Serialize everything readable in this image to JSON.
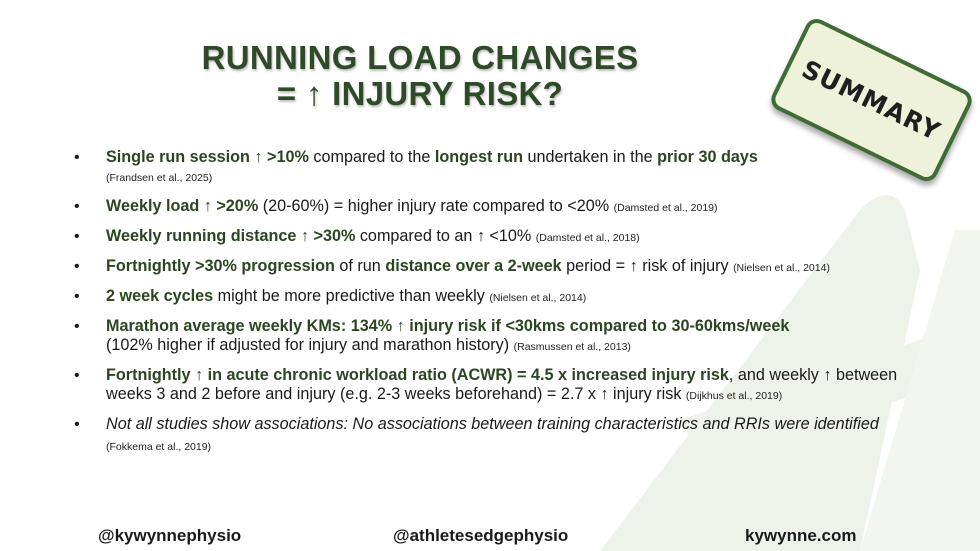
{
  "title": {
    "line1": "RUNNING LOAD CHANGES",
    "line2": "= ↑ INJURY RISK?"
  },
  "badge": "SUMMARY",
  "bullets": [
    {
      "p1": "Single run session ↑ >10%",
      "p2": " compared to the ",
      "p3": "longest run",
      "p4": " undertaken in the ",
      "p5": "prior 30 days",
      "cite": "(Frandsen et al., 2025)"
    },
    {
      "p1": "Weekly load ↑ >20%",
      "p2": " (20-60%) = higher injury rate compared to <20% ",
      "cite": "(Damsted et al., 2019)"
    },
    {
      "p1": "Weekly running distance ↑ >30%",
      "p2": " compared to an ↑ <10% ",
      "cite": "(Damsted et al., 2018)"
    },
    {
      "p1": "Fortnightly >30% progression",
      "p2": " of run ",
      "p3": "distance over a 2-week",
      "p4": " period = ↑ risk of injury ",
      "cite": "(Nielsen et al., 2014)"
    },
    {
      "p1": "2 week cycles",
      "p2": " might be more predictive than weekly ",
      "cite": "(Nielsen et al., 2014)"
    },
    {
      "p1": "Marathon average weekly KMs: 134% ↑ injury risk if <30kms compared to 30-60kms/week",
      "p2": "(102% higher if adjusted for injury and marathon history) ",
      "cite": "(Rasmussen et al., 2013)"
    },
    {
      "p1": "Fortnightly ↑ in acute chronic workload ratio (ACWR) = 4.5 x increased injury risk",
      "p2": ", and weekly ↑ between weeks 3 and 2 before and injury (e.g. 2-3 weeks beforehand) = 2.7 x ↑ injury risk ",
      "cite": "(Dijkhus et al., 2019)"
    },
    {
      "p1": "Not all studies show associations: No associations between training characteristics and RRIs were identified",
      "cite": " (Fokkema et al., 2019)"
    }
  ],
  "footer": {
    "left": "@kywynnephysio",
    "center": "@athletesedgephysio",
    "right": "kywynne.com"
  }
}
